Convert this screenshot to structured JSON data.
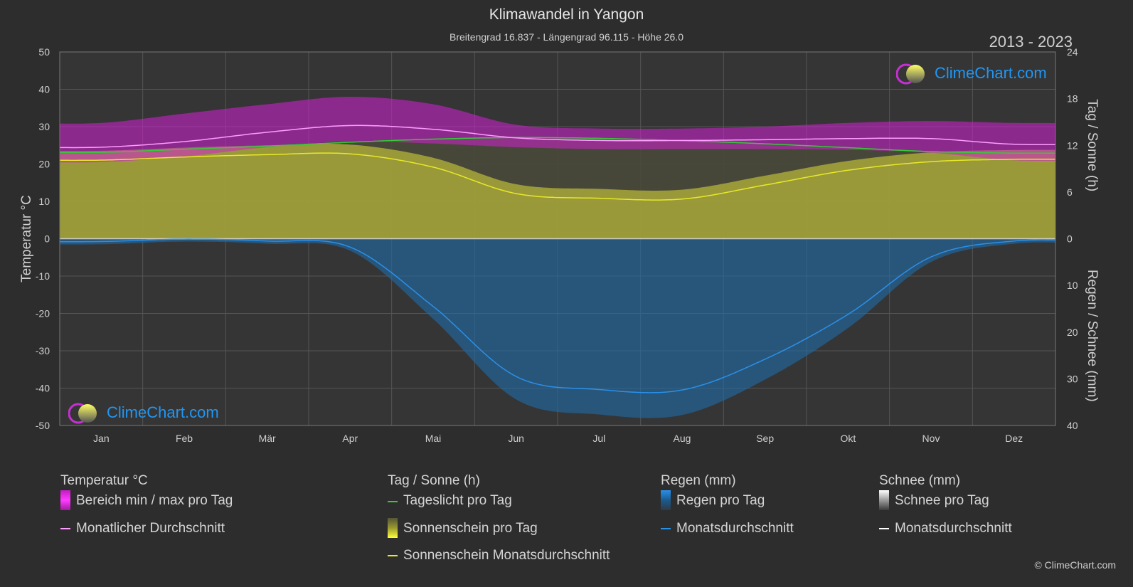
{
  "header": {
    "title": "Klimawandel in Yangon",
    "subtitle": "Breitengrad 16.837 - Längengrad 96.115 - Höhe 26.0",
    "period": "2013 - 2023"
  },
  "logo": {
    "text": "ClimeChart.com"
  },
  "copyright": "© ClimeChart.com",
  "colors": {
    "background": "#2d2d2d",
    "temp_range": "#d41fd4",
    "temp_avg": "#ff9cff",
    "daylight": "#33cc33",
    "sunshine_fill": "#a8a83a",
    "sunshine_avg": "#e8e82a",
    "rain_fill": "#1f6aa8",
    "rain_avg": "#2a90e8",
    "snow_avg": "#ffffff"
  },
  "legend": {
    "temperature": {
      "heading": "Temperatur °C",
      "items": [
        {
          "label": "Bereich min / max pro Tag",
          "icon": "magenta-range-swatch"
        },
        {
          "label": "Monatlicher Durchschnitt",
          "icon": "pink-line"
        }
      ]
    },
    "sun": {
      "heading": "Tag / Sonne (h)",
      "items": [
        {
          "label": "Tageslicht pro Tag",
          "icon": "green-line"
        },
        {
          "label": "Sonnenschein pro Tag",
          "icon": "yellow-swatch"
        },
        {
          "label": "Sonnenschein Monatsdurchschnitt",
          "icon": "yellow-line"
        }
      ]
    },
    "rain": {
      "heading": "Regen (mm)",
      "items": [
        {
          "label": "Regen pro Tag",
          "icon": "blue-swatch"
        },
        {
          "label": "Monatsdurchschnitt",
          "icon": "blue-line"
        }
      ]
    },
    "snow": {
      "heading": "Schnee (mm)",
      "items": [
        {
          "label": "Schnee pro Tag",
          "icon": "white-swatch"
        },
        {
          "label": "Monatsdurchschnitt",
          "icon": "white-line"
        }
      ]
    }
  },
  "chart_data": {
    "type": "line",
    "categories": [
      "Jan",
      "Feb",
      "Mär",
      "Apr",
      "Mai",
      "Jun",
      "Jul",
      "Aug",
      "Sep",
      "Okt",
      "Nov",
      "Dez"
    ],
    "left_axis": {
      "label": "Temperatur °C",
      "ylim": [
        -50,
        50
      ],
      "ticks": [
        50,
        40,
        30,
        20,
        10,
        0,
        -10,
        -20,
        -30,
        -40,
        -50
      ]
    },
    "right_axis_top": {
      "label": "Tag / Sonne (h)",
      "ylim": [
        0,
        24
      ],
      "ticks": [
        24,
        18,
        12,
        6,
        0
      ]
    },
    "right_axis_bottom": {
      "label": "Regen / Schnee (mm)",
      "ylim": [
        0,
        40
      ],
      "ticks": [
        0,
        10,
        20,
        30,
        40
      ]
    },
    "grid": true,
    "series": [
      {
        "name": "Monatlicher Durchschnitt",
        "axis": "temp",
        "values": [
          24.5,
          26.0,
          28.5,
          30.3,
          29.3,
          27.0,
          26.3,
          26.3,
          26.5,
          26.8,
          26.8,
          25.3
        ]
      },
      {
        "name": "Temperatur min",
        "axis": "temp",
        "values": [
          20.5,
          22.0,
          24.5,
          26.0,
          25.5,
          24.5,
          24.0,
          24.0,
          24.0,
          23.8,
          23.0,
          21.0
        ]
      },
      {
        "name": "Temperatur max",
        "axis": "temp",
        "values": [
          31.0,
          33.5,
          36.0,
          38.0,
          36.0,
          30.5,
          29.5,
          29.5,
          30.0,
          31.0,
          31.5,
          31.0
        ]
      },
      {
        "name": "Tageslicht pro Tag",
        "axis": "sun",
        "values": [
          11.1,
          11.5,
          11.9,
          12.4,
          12.8,
          13.0,
          12.9,
          12.6,
          12.2,
          11.7,
          11.2,
          11.0
        ]
      },
      {
        "name": "Sonnenschein Monatsdurchschnitt",
        "axis": "sun",
        "values": [
          10.1,
          10.5,
          10.8,
          10.9,
          9.2,
          5.8,
          5.2,
          5.1,
          6.9,
          8.8,
          9.9,
          10.2
        ]
      },
      {
        "name": "Regen Monatsdurchschnitt",
        "axis": "rain",
        "values": [
          0.6,
          0.1,
          0.5,
          1.8,
          14.5,
          29.5,
          32.3,
          32.4,
          25.8,
          16.2,
          3.9,
          0.5
        ]
      },
      {
        "name": "Schnee Monatsdurchschnitt",
        "axis": "rain",
        "values": [
          0,
          0,
          0,
          0,
          0,
          0,
          0,
          0,
          0,
          0,
          0,
          0
        ]
      }
    ]
  }
}
